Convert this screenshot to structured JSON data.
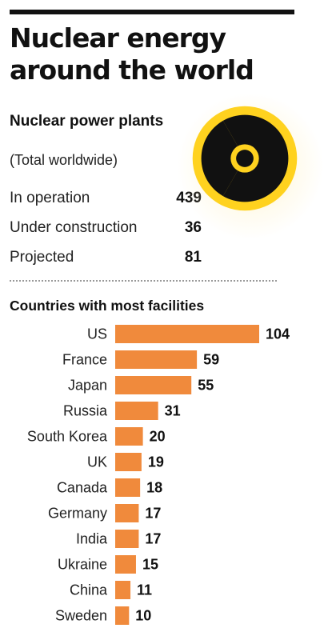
{
  "header": {
    "title": "Nuclear energy around the world"
  },
  "plants": {
    "heading": "Nuclear power plants",
    "subheading": "(Total worldwide)",
    "stats": [
      {
        "label": "In operation",
        "value": "439"
      },
      {
        "label": "Under construction",
        "value": "36"
      },
      {
        "label": "Projected",
        "value": "81"
      }
    ]
  },
  "icon": "radiation-symbol",
  "colors": {
    "bar": "#f08a3c",
    "radiation_fill": "#ffd21f",
    "radiation_ink": "#111111"
  },
  "chart_data": {
    "type": "bar",
    "orientation": "horizontal",
    "title": "Countries with most facilities",
    "categories": [
      "US",
      "France",
      "Japan",
      "Russia",
      "South Korea",
      "UK",
      "Canada",
      "Germany",
      "India",
      "Ukraine",
      "China",
      "Sweden"
    ],
    "values": [
      104,
      59,
      55,
      31,
      20,
      19,
      18,
      17,
      17,
      15,
      11,
      10
    ],
    "grid": false,
    "legend": "none"
  }
}
